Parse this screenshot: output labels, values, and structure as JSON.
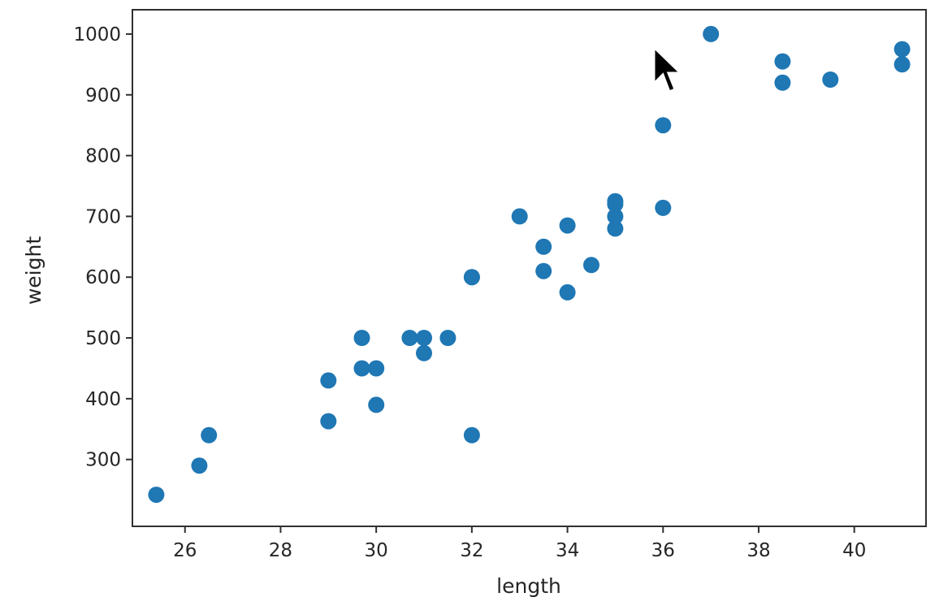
{
  "chart_data": {
    "type": "scatter",
    "title": "",
    "xlabel": "length",
    "ylabel": "weight",
    "xlim": [
      24.9,
      41.5
    ],
    "ylim": [
      190,
      1040
    ],
    "x_ticks": [
      26,
      28,
      30,
      32,
      34,
      36,
      38,
      40
    ],
    "y_ticks": [
      300,
      400,
      500,
      600,
      700,
      800,
      900,
      1000
    ],
    "grid": false,
    "legend": "none",
    "marker_color": "#1f77b4",
    "series": [
      {
        "points": [
          {
            "x": 25.4,
            "y": 242
          },
          {
            "x": 26.3,
            "y": 290
          },
          {
            "x": 26.5,
            "y": 340
          },
          {
            "x": 29.0,
            "y": 363
          },
          {
            "x": 29.0,
            "y": 430
          },
          {
            "x": 29.7,
            "y": 450
          },
          {
            "x": 29.7,
            "y": 500
          },
          {
            "x": 30.0,
            "y": 390
          },
          {
            "x": 30.0,
            "y": 450
          },
          {
            "x": 30.7,
            "y": 500
          },
          {
            "x": 31.0,
            "y": 475
          },
          {
            "x": 31.0,
            "y": 500
          },
          {
            "x": 31.5,
            "y": 500
          },
          {
            "x": 32.0,
            "y": 340
          },
          {
            "x": 32.0,
            "y": 600
          },
          {
            "x": 32.0,
            "y": 600
          },
          {
            "x": 33.0,
            "y": 700
          },
          {
            "x": 33.5,
            "y": 610
          },
          {
            "x": 33.5,
            "y": 650
          },
          {
            "x": 34.0,
            "y": 575
          },
          {
            "x": 34.0,
            "y": 685
          },
          {
            "x": 34.5,
            "y": 620
          },
          {
            "x": 35.0,
            "y": 680
          },
          {
            "x": 35.0,
            "y": 700
          },
          {
            "x": 35.0,
            "y": 725
          },
          {
            "x": 35.0,
            "y": 720
          },
          {
            "x": 36.0,
            "y": 714
          },
          {
            "x": 36.0,
            "y": 850
          },
          {
            "x": 37.0,
            "y": 1000
          },
          {
            "x": 38.5,
            "y": 920
          },
          {
            "x": 38.5,
            "y": 955
          },
          {
            "x": 39.5,
            "y": 925
          },
          {
            "x": 41.0,
            "y": 975
          },
          {
            "x": 41.0,
            "y": 950
          }
        ]
      }
    ]
  },
  "cursor": {
    "icon": "arrow-cursor-icon"
  }
}
